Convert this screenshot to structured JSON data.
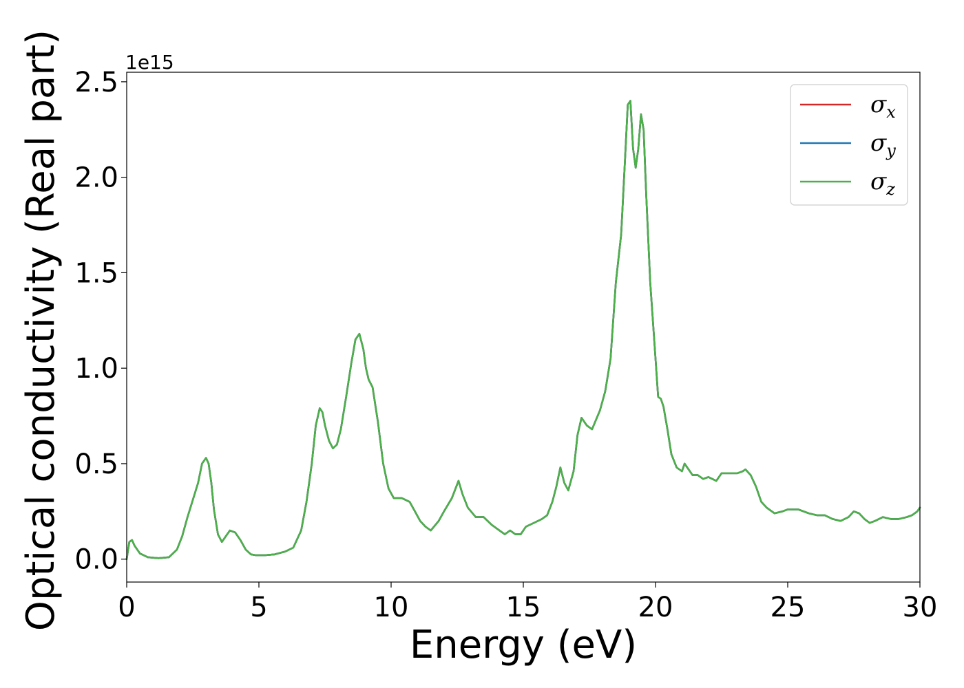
{
  "chart_data": {
    "type": "line",
    "title": "",
    "xlabel": "Energy (eV)",
    "ylabel": "Optical conductivity (Real part)",
    "y_offset_label": "1e15",
    "xlim": [
      0,
      30
    ],
    "ylim": [
      -0.12,
      2.55
    ],
    "x_ticks": [
      0,
      5,
      10,
      15,
      20,
      25,
      30
    ],
    "x_tick_labels": [
      "0",
      "5",
      "10",
      "15",
      "20",
      "25",
      "30"
    ],
    "y_ticks": [
      0.0,
      0.5,
      1.0,
      1.5,
      2.0,
      2.5
    ],
    "y_tick_labels": [
      "0.0",
      "0.5",
      "1.0",
      "1.5",
      "2.0",
      "2.5"
    ],
    "grid": false,
    "legend_position": "top-right",
    "x": [
      0,
      0.1,
      0.2,
      0.3,
      0.5,
      0.8,
      1.2,
      1.6,
      1.9,
      2.1,
      2.3,
      2.5,
      2.7,
      2.85,
      3.0,
      3.1,
      3.2,
      3.3,
      3.45,
      3.6,
      3.75,
      3.9,
      4.1,
      4.3,
      4.5,
      4.7,
      4.9,
      5.2,
      5.6,
      6.0,
      6.3,
      6.6,
      6.8,
      7.0,
      7.15,
      7.3,
      7.4,
      7.5,
      7.65,
      7.8,
      7.95,
      8.1,
      8.3,
      8.5,
      8.65,
      8.8,
      8.95,
      9.05,
      9.15,
      9.3,
      9.5,
      9.7,
      9.9,
      10.1,
      10.4,
      10.7,
      10.9,
      11.1,
      11.3,
      11.5,
      11.8,
      12.0,
      12.3,
      12.55,
      12.7,
      12.9,
      13.2,
      13.5,
      13.8,
      14.1,
      14.3,
      14.5,
      14.7,
      14.9,
      15.1,
      15.4,
      15.7,
      15.9,
      16.1,
      16.25,
      16.4,
      16.55,
      16.7,
      16.9,
      17.05,
      17.2,
      17.4,
      17.6,
      17.9,
      18.1,
      18.3,
      18.5,
      18.7,
      18.85,
      18.95,
      19.05,
      19.15,
      19.25,
      19.35,
      19.45,
      19.55,
      19.65,
      19.8,
      20.0,
      20.1,
      20.2,
      20.3,
      20.45,
      20.6,
      20.8,
      21.0,
      21.1,
      21.2,
      21.4,
      21.6,
      21.8,
      22.0,
      22.3,
      22.5,
      22.8,
      23.1,
      23.3,
      23.4,
      23.6,
      23.8,
      24.0,
      24.2,
      24.5,
      24.8,
      25.0,
      25.4,
      25.8,
      26.1,
      26.4,
      26.7,
      27.0,
      27.3,
      27.5,
      27.7,
      27.9,
      28.1,
      28.3,
      28.6,
      28.9,
      29.2,
      29.5,
      29.7,
      29.9,
      30.0
    ],
    "series": [
      {
        "name": "σx",
        "color": "#d62728",
        "values": [
          0.0,
          0.09,
          0.1,
          0.07,
          0.03,
          0.01,
          0.005,
          0.01,
          0.05,
          0.12,
          0.22,
          0.31,
          0.4,
          0.5,
          0.53,
          0.5,
          0.4,
          0.26,
          0.13,
          0.09,
          0.12,
          0.15,
          0.14,
          0.1,
          0.05,
          0.025,
          0.02,
          0.02,
          0.025,
          0.04,
          0.06,
          0.15,
          0.3,
          0.5,
          0.7,
          0.79,
          0.77,
          0.7,
          0.62,
          0.58,
          0.6,
          0.68,
          0.85,
          1.03,
          1.15,
          1.18,
          1.1,
          1.0,
          0.94,
          0.9,
          0.72,
          0.5,
          0.37,
          0.32,
          0.32,
          0.3,
          0.25,
          0.2,
          0.17,
          0.15,
          0.2,
          0.25,
          0.32,
          0.41,
          0.34,
          0.27,
          0.22,
          0.22,
          0.18,
          0.15,
          0.13,
          0.15,
          0.13,
          0.13,
          0.17,
          0.19,
          0.21,
          0.23,
          0.3,
          0.38,
          0.48,
          0.4,
          0.36,
          0.46,
          0.65,
          0.74,
          0.7,
          0.68,
          0.78,
          0.88,
          1.05,
          1.45,
          1.7,
          2.1,
          2.38,
          2.4,
          2.15,
          2.05,
          2.15,
          2.33,
          2.25,
          1.9,
          1.45,
          1.05,
          0.85,
          0.84,
          0.8,
          0.68,
          0.55,
          0.48,
          0.46,
          0.5,
          0.48,
          0.44,
          0.44,
          0.42,
          0.43,
          0.41,
          0.45,
          0.45,
          0.45,
          0.46,
          0.47,
          0.44,
          0.38,
          0.3,
          0.27,
          0.24,
          0.25,
          0.26,
          0.26,
          0.24,
          0.23,
          0.23,
          0.21,
          0.2,
          0.22,
          0.25,
          0.24,
          0.21,
          0.19,
          0.2,
          0.22,
          0.21,
          0.21,
          0.22,
          0.23,
          0.25,
          0.27
        ]
      },
      {
        "name": "σy",
        "color": "#1f77b4",
        "values": [
          0.0,
          0.09,
          0.1,
          0.07,
          0.03,
          0.01,
          0.005,
          0.01,
          0.05,
          0.12,
          0.22,
          0.31,
          0.4,
          0.5,
          0.53,
          0.5,
          0.4,
          0.26,
          0.13,
          0.09,
          0.12,
          0.15,
          0.14,
          0.1,
          0.05,
          0.025,
          0.02,
          0.02,
          0.025,
          0.04,
          0.06,
          0.15,
          0.3,
          0.5,
          0.7,
          0.79,
          0.77,
          0.7,
          0.62,
          0.58,
          0.6,
          0.68,
          0.85,
          1.03,
          1.15,
          1.18,
          1.1,
          1.0,
          0.94,
          0.9,
          0.72,
          0.5,
          0.37,
          0.32,
          0.32,
          0.3,
          0.25,
          0.2,
          0.17,
          0.15,
          0.2,
          0.25,
          0.32,
          0.41,
          0.34,
          0.27,
          0.22,
          0.22,
          0.18,
          0.15,
          0.13,
          0.15,
          0.13,
          0.13,
          0.17,
          0.19,
          0.21,
          0.23,
          0.3,
          0.38,
          0.48,
          0.4,
          0.36,
          0.46,
          0.65,
          0.74,
          0.7,
          0.68,
          0.78,
          0.88,
          1.05,
          1.45,
          1.7,
          2.1,
          2.38,
          2.4,
          2.15,
          2.05,
          2.15,
          2.33,
          2.25,
          1.9,
          1.45,
          1.05,
          0.85,
          0.84,
          0.8,
          0.68,
          0.55,
          0.48,
          0.46,
          0.5,
          0.48,
          0.44,
          0.44,
          0.42,
          0.43,
          0.41,
          0.45,
          0.45,
          0.45,
          0.46,
          0.47,
          0.44,
          0.38,
          0.3,
          0.27,
          0.24,
          0.25,
          0.26,
          0.26,
          0.24,
          0.23,
          0.23,
          0.21,
          0.2,
          0.22,
          0.25,
          0.24,
          0.21,
          0.19,
          0.2,
          0.22,
          0.21,
          0.21,
          0.22,
          0.23,
          0.25,
          0.27
        ]
      },
      {
        "name": "σz",
        "color": "#4daf4a",
        "values": [
          0.0,
          0.09,
          0.1,
          0.07,
          0.03,
          0.01,
          0.005,
          0.01,
          0.05,
          0.12,
          0.22,
          0.31,
          0.4,
          0.5,
          0.53,
          0.5,
          0.4,
          0.26,
          0.13,
          0.09,
          0.12,
          0.15,
          0.14,
          0.1,
          0.05,
          0.025,
          0.02,
          0.02,
          0.025,
          0.04,
          0.06,
          0.15,
          0.3,
          0.5,
          0.7,
          0.79,
          0.77,
          0.7,
          0.62,
          0.58,
          0.6,
          0.68,
          0.85,
          1.03,
          1.15,
          1.18,
          1.1,
          1.0,
          0.94,
          0.9,
          0.72,
          0.5,
          0.37,
          0.32,
          0.32,
          0.3,
          0.25,
          0.2,
          0.17,
          0.15,
          0.2,
          0.25,
          0.32,
          0.41,
          0.34,
          0.27,
          0.22,
          0.22,
          0.18,
          0.15,
          0.13,
          0.15,
          0.13,
          0.13,
          0.17,
          0.19,
          0.21,
          0.23,
          0.3,
          0.38,
          0.48,
          0.4,
          0.36,
          0.46,
          0.65,
          0.74,
          0.7,
          0.68,
          0.78,
          0.88,
          1.05,
          1.45,
          1.7,
          2.1,
          2.38,
          2.4,
          2.15,
          2.05,
          2.15,
          2.33,
          2.25,
          1.9,
          1.45,
          1.05,
          0.85,
          0.84,
          0.8,
          0.68,
          0.55,
          0.48,
          0.46,
          0.5,
          0.48,
          0.44,
          0.44,
          0.42,
          0.43,
          0.41,
          0.45,
          0.45,
          0.45,
          0.46,
          0.47,
          0.44,
          0.38,
          0.3,
          0.27,
          0.24,
          0.25,
          0.26,
          0.26,
          0.24,
          0.23,
          0.23,
          0.21,
          0.2,
          0.22,
          0.25,
          0.24,
          0.21,
          0.19,
          0.2,
          0.22,
          0.21,
          0.21,
          0.22,
          0.23,
          0.25,
          0.27
        ]
      }
    ],
    "legend": [
      {
        "symbol": "σ",
        "sub": "x",
        "color": "#d62728"
      },
      {
        "symbol": "σ",
        "sub": "y",
        "color": "#1f77b4"
      },
      {
        "symbol": "σ",
        "sub": "z",
        "color": "#4daf4a"
      }
    ]
  }
}
